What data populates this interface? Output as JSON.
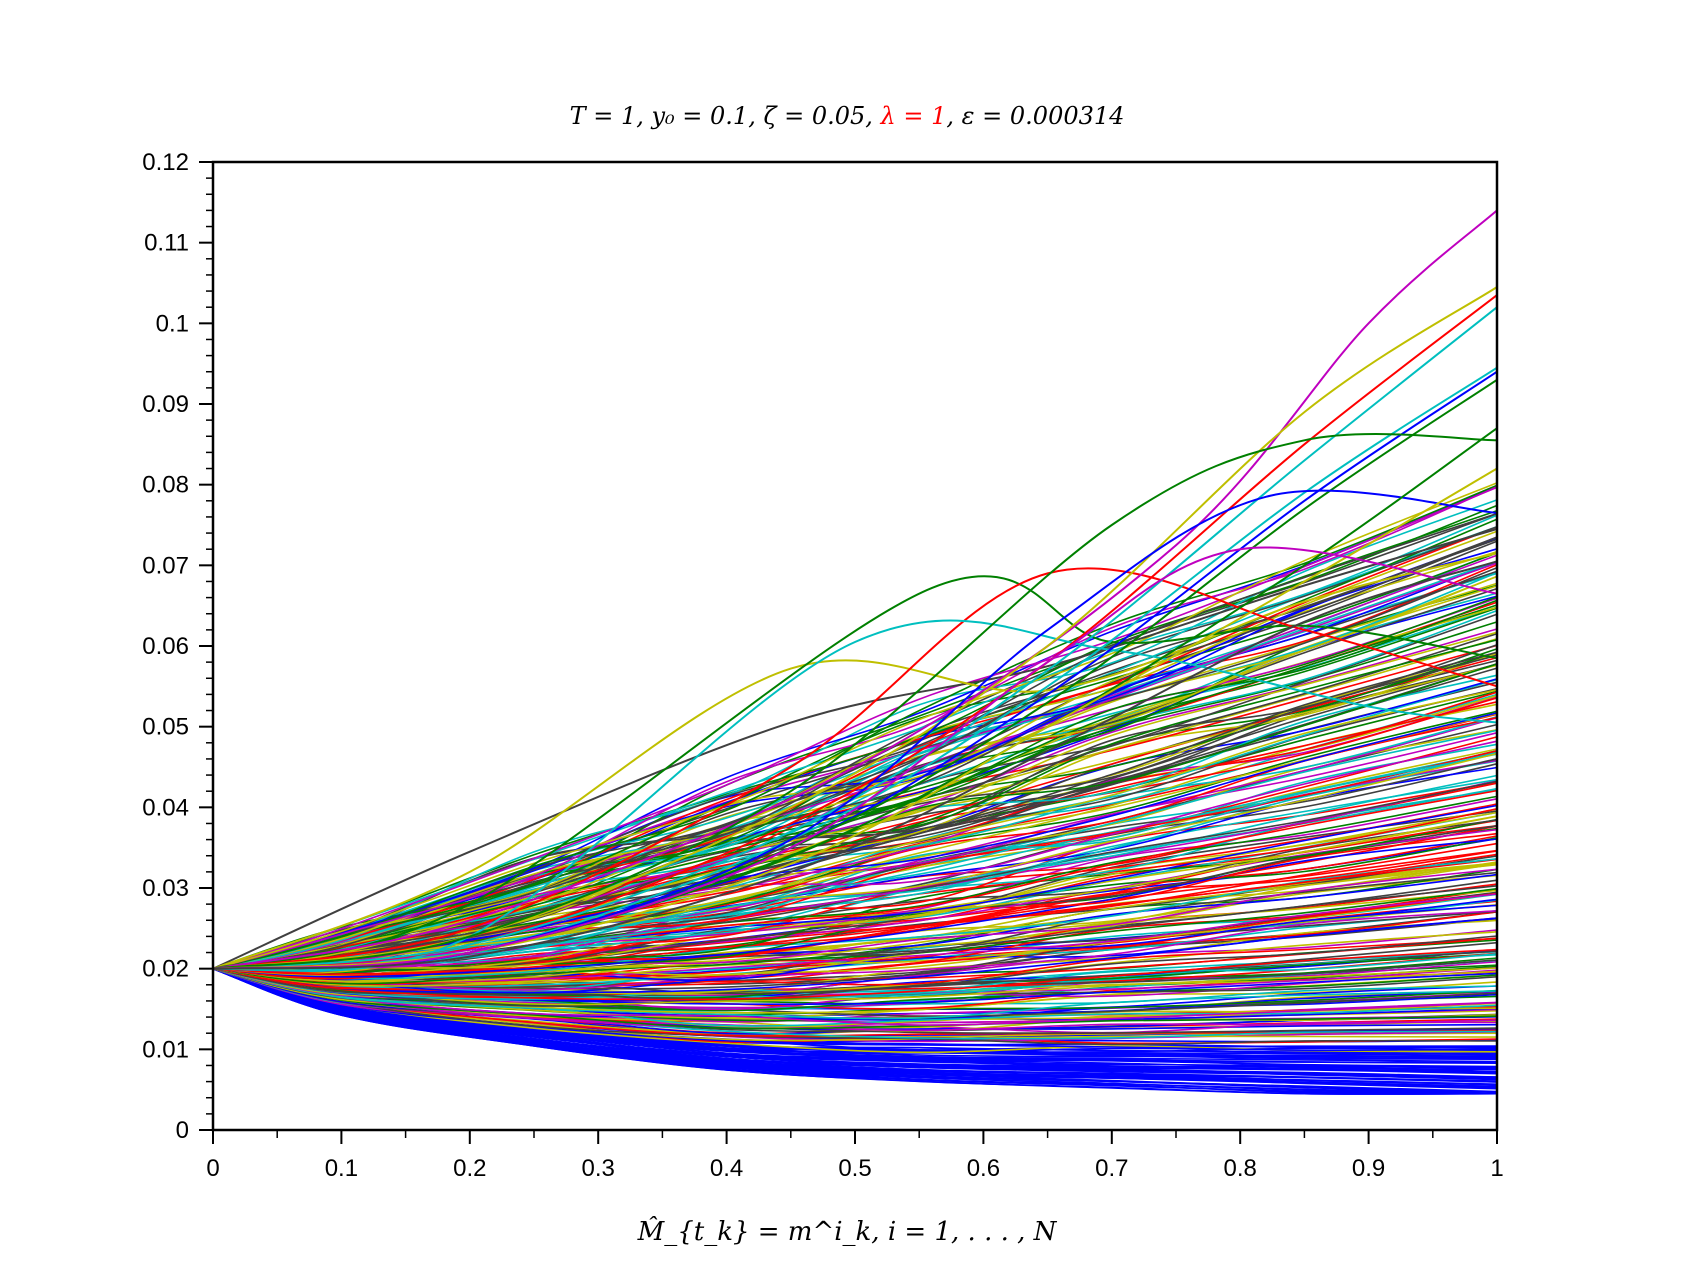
{
  "chart_data": {
    "type": "line",
    "title_parts": [
      {
        "text": "T = 1, y₀ = 0.1, ζ = 0.05, ",
        "color": "#000000"
      },
      {
        "text": "λ = 1",
        "color": "#ff0000"
      },
      {
        "text": ", ε = 0.000314",
        "color": "#000000"
      }
    ],
    "xlabel": "M̂_{t_k} = m^i_k,  i = 1, . . . , N",
    "xlim": [
      0,
      1
    ],
    "ylim": [
      0,
      0.12
    ],
    "xticks": [
      0,
      0.1,
      0.2,
      0.3,
      0.4,
      0.5,
      0.6,
      0.7,
      0.8,
      0.9,
      1
    ],
    "xtick_labels": [
      "0",
      "0.1",
      "0.2",
      "0.3",
      "0.4",
      "0.5",
      "0.6",
      "0.7",
      "0.8",
      "0.9",
      "1"
    ],
    "yticks": [
      0,
      0.01,
      0.02,
      0.03,
      0.04,
      0.05,
      0.06,
      0.07,
      0.08,
      0.09,
      0.1,
      0.11,
      0.12
    ],
    "ytick_labels": [
      "0",
      "0.01",
      "0.02",
      "0.03",
      "0.04",
      "0.05",
      "0.06",
      "0.07",
      "0.08",
      "0.09",
      "0.1",
      "0.11",
      "0.12"
    ],
    "grid": false,
    "start_value": 0.02,
    "palette": [
      "#0000ff",
      "#008000",
      "#ff0000",
      "#00bfbf",
      "#bf00bf",
      "#bfbf00",
      "#404040"
    ],
    "series": [
      {
        "x": [
          0,
          0.2,
          0.45,
          0.65,
          0.85,
          1
        ],
        "y": [
          0.02,
          0.0345,
          0.0505,
          0.0575,
          0.0675,
          0.0745
        ],
        "color": "#404040"
      },
      {
        "x": [
          0,
          0.2,
          0.45,
          0.65,
          0.85,
          1
        ],
        "y": [
          0.02,
          0.032,
          0.0572,
          0.0545,
          0.0655,
          0.0715
        ],
        "color": "#bfbf00"
      },
      {
        "x": [
          0,
          0.2,
          0.56,
          0.7,
          0.85,
          1
        ],
        "y": [
          0.02,
          0.028,
          0.0672,
          0.0605,
          0.0625,
          0.0585
        ],
        "color": "#008000"
      },
      {
        "x": [
          0,
          0.2,
          0.45,
          0.65,
          0.85,
          1
        ],
        "y": [
          0.02,
          0.025,
          0.045,
          0.069,
          0.062,
          0.055
        ],
        "color": "#ff0000"
      },
      {
        "x": [
          0,
          0.2,
          0.5,
          0.7,
          0.9,
          1
        ],
        "y": [
          0.02,
          0.024,
          0.0605,
          0.0595,
          0.0525,
          0.0505
        ],
        "color": "#00bfbf"
      },
      {
        "x": [
          0,
          0.2,
          0.5,
          0.75,
          0.9,
          1
        ],
        "y": [
          0.02,
          0.026,
          0.045,
          0.0725,
          0.1,
          0.114
        ],
        "color": "#bf00bf"
      },
      {
        "x": [
          0,
          0.2,
          0.45,
          0.65,
          0.85,
          1
        ],
        "y": [
          0.02,
          0.024,
          0.04,
          0.06,
          0.089,
          0.1045
        ],
        "color": "#bfbf00"
      },
      {
        "x": [
          0,
          0.2,
          0.45,
          0.65,
          0.85,
          1
        ],
        "y": [
          0.02,
          0.023,
          0.038,
          0.058,
          0.085,
          0.1035
        ],
        "color": "#ff0000"
      },
      {
        "x": [
          0,
          0.2,
          0.45,
          0.65,
          0.85,
          1
        ],
        "y": [
          0.02,
          0.023,
          0.037,
          0.057,
          0.083,
          0.102
        ],
        "color": "#00bfbf"
      },
      {
        "x": [
          0,
          0.2,
          0.45,
          0.65,
          0.85,
          1
        ],
        "y": [
          0.02,
          0.022,
          0.036,
          0.055,
          0.079,
          0.0945
        ],
        "color": "#00bfbf"
      },
      {
        "x": [
          0,
          0.2,
          0.45,
          0.65,
          0.85,
          1
        ],
        "y": [
          0.02,
          0.022,
          0.035,
          0.054,
          0.078,
          0.094
        ],
        "color": "#0000ff"
      },
      {
        "x": [
          0,
          0.2,
          0.45,
          0.65,
          0.85,
          1
        ],
        "y": [
          0.02,
          0.022,
          0.035,
          0.053,
          0.077,
          0.093
        ],
        "color": "#008000"
      },
      {
        "x": [
          0,
          0.2,
          0.45,
          0.7,
          0.85,
          1
        ],
        "y": [
          0.02,
          0.024,
          0.042,
          0.075,
          0.0855,
          0.0855
        ],
        "color": "#008000"
      },
      {
        "x": [
          0,
          0.2,
          0.45,
          0.65,
          0.82,
          1
        ],
        "y": [
          0.02,
          0.022,
          0.036,
          0.062,
          0.0785,
          0.0765
        ],
        "color": "#0000ff"
      },
      {
        "x": [
          0,
          0.2,
          0.45,
          0.65,
          0.85,
          1
        ],
        "y": [
          0.02,
          0.022,
          0.034,
          0.05,
          0.07,
          0.087
        ],
        "color": "#008000"
      },
      {
        "x": [
          0,
          0.2,
          0.45,
          0.65,
          0.85,
          1
        ],
        "y": [
          0.02,
          0.022,
          0.033,
          0.05,
          0.068,
          0.082
        ],
        "color": "#bfbf00"
      },
      {
        "x": [
          0,
          0.2,
          0.45,
          0.65,
          0.8,
          1
        ],
        "y": [
          0.02,
          0.022,
          0.035,
          0.058,
          0.072,
          0.0665
        ],
        "color": "#bf00bf"
      },
      {
        "x": [
          0,
          0.2,
          0.45,
          0.65,
          0.85,
          1
        ],
        "y": [
          0.02,
          0.0215,
          0.032,
          0.047,
          0.063,
          0.0705
        ],
        "color": "#404040"
      }
    ]
  }
}
